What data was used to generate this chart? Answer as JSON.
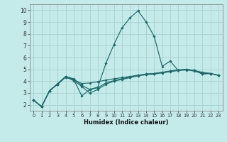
{
  "xlabel": "Humidex (Indice chaleur)",
  "xlim": [
    -0.5,
    23.5
  ],
  "ylim": [
    1.5,
    10.5
  ],
  "yticks": [
    2,
    3,
    4,
    5,
    6,
    7,
    8,
    9,
    10
  ],
  "xticks": [
    0,
    1,
    2,
    3,
    4,
    5,
    6,
    7,
    8,
    9,
    10,
    11,
    12,
    13,
    14,
    15,
    16,
    17,
    18,
    19,
    20,
    21,
    22,
    23
  ],
  "background_color": "#c5eaea",
  "grid_color": "#aad4d4",
  "line_color": "#1a6b6b",
  "lines": [
    {
      "x": [
        0,
        1,
        2,
        3,
        4,
        5,
        6,
        7,
        8,
        9,
        10,
        11,
        12,
        13,
        14,
        15,
        16,
        17,
        18,
        19,
        20,
        21,
        22,
        23
      ],
      "y": [
        2.4,
        1.85,
        3.2,
        3.75,
        4.4,
        4.15,
        2.75,
        3.3,
        3.5,
        5.5,
        7.1,
        8.5,
        9.35,
        9.95,
        9.0,
        7.8,
        5.25,
        5.7,
        4.9,
        5.0,
        4.9,
        4.6,
        4.65,
        4.5
      ]
    },
    {
      "x": [
        0,
        1,
        2,
        3,
        4,
        5,
        6,
        7,
        8,
        9,
        10,
        11,
        12,
        13,
        14,
        15,
        16,
        17,
        18,
        19,
        20,
        21,
        22,
        23
      ],
      "y": [
        2.4,
        1.85,
        3.2,
        3.75,
        4.35,
        4.1,
        3.8,
        3.85,
        3.95,
        4.1,
        4.2,
        4.3,
        4.4,
        4.5,
        4.6,
        4.65,
        4.75,
        4.85,
        4.95,
        5.0,
        4.9,
        4.75,
        4.65,
        4.5
      ]
    },
    {
      "x": [
        0,
        1,
        2,
        3,
        4,
        5,
        6,
        7,
        8,
        9,
        10,
        11,
        12,
        13,
        14,
        15,
        16,
        17,
        18,
        19,
        20,
        21,
        22,
        23
      ],
      "y": [
        2.4,
        1.85,
        3.2,
        3.8,
        4.4,
        4.2,
        3.65,
        3.3,
        3.45,
        3.85,
        4.05,
        4.2,
        4.35,
        4.5,
        4.6,
        4.65,
        4.75,
        4.85,
        4.95,
        5.0,
        4.9,
        4.7,
        4.65,
        4.5
      ]
    },
    {
      "x": [
        0,
        1,
        2,
        3,
        4,
        5,
        6,
        7,
        8,
        9,
        10,
        11,
        12,
        13,
        14,
        15,
        16,
        17,
        18,
        19,
        20,
        21,
        22,
        23
      ],
      "y": [
        2.4,
        1.85,
        3.2,
        3.75,
        4.35,
        4.05,
        3.55,
        3.0,
        3.3,
        3.75,
        4.0,
        4.15,
        4.3,
        4.45,
        4.55,
        4.6,
        4.7,
        4.8,
        4.9,
        4.95,
        4.85,
        4.65,
        4.65,
        4.5
      ]
    }
  ]
}
